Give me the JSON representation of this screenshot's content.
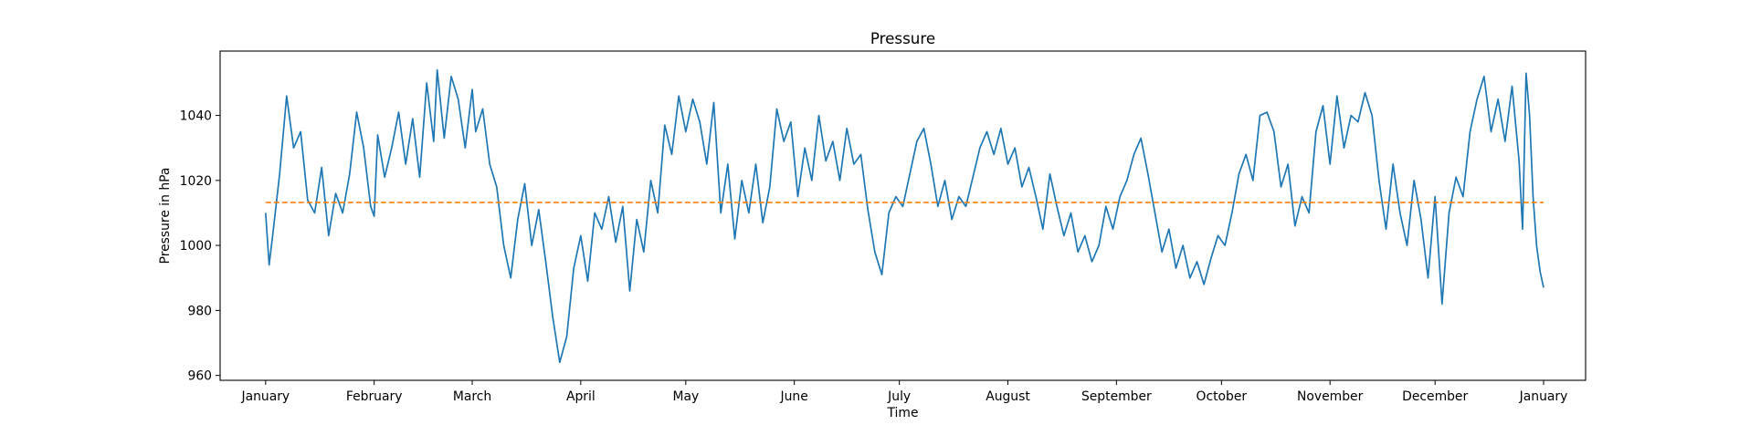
{
  "chart_data": {
    "type": "line",
    "title": "Pressure",
    "xlabel": "Time",
    "ylabel": "Pressure in hPa",
    "x_ticks": [
      "January",
      "February",
      "March",
      "April",
      "May",
      "June",
      "July",
      "August",
      "September",
      "October",
      "November",
      "December",
      "January"
    ],
    "xlim": [
      "2018-12-19",
      "2020-01-13"
    ],
    "ylim": [
      958.5,
      1059.8
    ],
    "y_ticks": [
      960,
      980,
      1000,
      1020,
      1040
    ],
    "grid": false,
    "legend": "none",
    "series": [
      {
        "color": "#1f77b4",
        "linestyle": "solid",
        "points": [
          [
            "2019-01-01",
            1010
          ],
          [
            "2019-01-02",
            994
          ],
          [
            "2019-01-03",
            1003
          ],
          [
            "2019-01-05",
            1022
          ],
          [
            "2019-01-07",
            1046
          ],
          [
            "2019-01-09",
            1030
          ],
          [
            "2019-01-11",
            1035
          ],
          [
            "2019-01-13",
            1014
          ],
          [
            "2019-01-15",
            1010
          ],
          [
            "2019-01-17",
            1024
          ],
          [
            "2019-01-19",
            1003
          ],
          [
            "2019-01-21",
            1016
          ],
          [
            "2019-01-23",
            1010
          ],
          [
            "2019-01-25",
            1022
          ],
          [
            "2019-01-27",
            1041
          ],
          [
            "2019-01-29",
            1030
          ],
          [
            "2019-01-31",
            1012
          ],
          [
            "2019-02-01",
            1009
          ],
          [
            "2019-02-02",
            1034
          ],
          [
            "2019-02-04",
            1021
          ],
          [
            "2019-02-06",
            1030
          ],
          [
            "2019-02-08",
            1041
          ],
          [
            "2019-02-10",
            1025
          ],
          [
            "2019-02-12",
            1039
          ],
          [
            "2019-02-14",
            1021
          ],
          [
            "2019-02-16",
            1050
          ],
          [
            "2019-02-18",
            1032
          ],
          [
            "2019-02-19",
            1054
          ],
          [
            "2019-02-21",
            1033
          ],
          [
            "2019-02-23",
            1052
          ],
          [
            "2019-02-25",
            1045
          ],
          [
            "2019-02-27",
            1030
          ],
          [
            "2019-03-01",
            1048
          ],
          [
            "2019-03-02",
            1035
          ],
          [
            "2019-03-04",
            1042
          ],
          [
            "2019-03-06",
            1025
          ],
          [
            "2019-03-08",
            1018
          ],
          [
            "2019-03-10",
            1000
          ],
          [
            "2019-03-12",
            990
          ],
          [
            "2019-03-14",
            1008
          ],
          [
            "2019-03-16",
            1019
          ],
          [
            "2019-03-18",
            1000
          ],
          [
            "2019-03-20",
            1011
          ],
          [
            "2019-03-22",
            995
          ],
          [
            "2019-03-24",
            978
          ],
          [
            "2019-03-26",
            964
          ],
          [
            "2019-03-28",
            972
          ],
          [
            "2019-03-30",
            993
          ],
          [
            "2019-04-01",
            1003
          ],
          [
            "2019-04-03",
            989
          ],
          [
            "2019-04-05",
            1010
          ],
          [
            "2019-04-07",
            1005
          ],
          [
            "2019-04-09",
            1015
          ],
          [
            "2019-04-11",
            1001
          ],
          [
            "2019-04-13",
            1012
          ],
          [
            "2019-04-15",
            986
          ],
          [
            "2019-04-17",
            1008
          ],
          [
            "2019-04-19",
            998
          ],
          [
            "2019-04-21",
            1020
          ],
          [
            "2019-04-23",
            1010
          ],
          [
            "2019-04-25",
            1037
          ],
          [
            "2019-04-27",
            1028
          ],
          [
            "2019-04-29",
            1046
          ],
          [
            "2019-05-01",
            1035
          ],
          [
            "2019-05-03",
            1045
          ],
          [
            "2019-05-05",
            1038
          ],
          [
            "2019-05-07",
            1025
          ],
          [
            "2019-05-09",
            1044
          ],
          [
            "2019-05-11",
            1010
          ],
          [
            "2019-05-13",
            1025
          ],
          [
            "2019-05-15",
            1002
          ],
          [
            "2019-05-17",
            1020
          ],
          [
            "2019-05-19",
            1010
          ],
          [
            "2019-05-21",
            1025
          ],
          [
            "2019-05-23",
            1007
          ],
          [
            "2019-05-25",
            1018
          ],
          [
            "2019-05-27",
            1042
          ],
          [
            "2019-05-29",
            1032
          ],
          [
            "2019-05-31",
            1038
          ],
          [
            "2019-06-02",
            1015
          ],
          [
            "2019-06-04",
            1030
          ],
          [
            "2019-06-06",
            1020
          ],
          [
            "2019-06-08",
            1040
          ],
          [
            "2019-06-10",
            1026
          ],
          [
            "2019-06-12",
            1032
          ],
          [
            "2019-06-14",
            1020
          ],
          [
            "2019-06-16",
            1036
          ],
          [
            "2019-06-18",
            1025
          ],
          [
            "2019-06-20",
            1028
          ],
          [
            "2019-06-22",
            1011
          ],
          [
            "2019-06-24",
            998
          ],
          [
            "2019-06-26",
            991
          ],
          [
            "2019-06-28",
            1010
          ],
          [
            "2019-06-30",
            1015
          ],
          [
            "2019-07-02",
            1012
          ],
          [
            "2019-07-04",
            1022
          ],
          [
            "2019-07-06",
            1032
          ],
          [
            "2019-07-08",
            1036
          ],
          [
            "2019-07-10",
            1025
          ],
          [
            "2019-07-12",
            1012
          ],
          [
            "2019-07-14",
            1020
          ],
          [
            "2019-07-16",
            1008
          ],
          [
            "2019-07-18",
            1015
          ],
          [
            "2019-07-20",
            1012
          ],
          [
            "2019-07-22",
            1021
          ],
          [
            "2019-07-24",
            1030
          ],
          [
            "2019-07-26",
            1035
          ],
          [
            "2019-07-28",
            1028
          ],
          [
            "2019-07-30",
            1036
          ],
          [
            "2019-08-01",
            1025
          ],
          [
            "2019-08-03",
            1030
          ],
          [
            "2019-08-05",
            1018
          ],
          [
            "2019-08-07",
            1024
          ],
          [
            "2019-08-09",
            1015
          ],
          [
            "2019-08-11",
            1005
          ],
          [
            "2019-08-13",
            1022
          ],
          [
            "2019-08-15",
            1012
          ],
          [
            "2019-08-17",
            1003
          ],
          [
            "2019-08-19",
            1010
          ],
          [
            "2019-08-21",
            998
          ],
          [
            "2019-08-23",
            1003
          ],
          [
            "2019-08-25",
            995
          ],
          [
            "2019-08-27",
            1000
          ],
          [
            "2019-08-29",
            1012
          ],
          [
            "2019-08-31",
            1005
          ],
          [
            "2019-09-02",
            1015
          ],
          [
            "2019-09-04",
            1020
          ],
          [
            "2019-09-06",
            1028
          ],
          [
            "2019-09-08",
            1033
          ],
          [
            "2019-09-10",
            1022
          ],
          [
            "2019-09-12",
            1010
          ],
          [
            "2019-09-14",
            998
          ],
          [
            "2019-09-16",
            1005
          ],
          [
            "2019-09-18",
            993
          ],
          [
            "2019-09-20",
            1000
          ],
          [
            "2019-09-22",
            990
          ],
          [
            "2019-09-24",
            995
          ],
          [
            "2019-09-26",
            988
          ],
          [
            "2019-09-28",
            996
          ],
          [
            "2019-09-30",
            1003
          ],
          [
            "2019-10-02",
            1000
          ],
          [
            "2019-10-04",
            1010
          ],
          [
            "2019-10-06",
            1022
          ],
          [
            "2019-10-08",
            1028
          ],
          [
            "2019-10-10",
            1020
          ],
          [
            "2019-10-12",
            1040
          ],
          [
            "2019-10-14",
            1041
          ],
          [
            "2019-10-16",
            1035
          ],
          [
            "2019-10-18",
            1018
          ],
          [
            "2019-10-20",
            1025
          ],
          [
            "2019-10-22",
            1006
          ],
          [
            "2019-10-24",
            1015
          ],
          [
            "2019-10-26",
            1010
          ],
          [
            "2019-10-28",
            1035
          ],
          [
            "2019-10-30",
            1043
          ],
          [
            "2019-11-01",
            1025
          ],
          [
            "2019-11-03",
            1046
          ],
          [
            "2019-11-05",
            1030
          ],
          [
            "2019-11-07",
            1040
          ],
          [
            "2019-11-09",
            1038
          ],
          [
            "2019-11-11",
            1047
          ],
          [
            "2019-11-13",
            1040
          ],
          [
            "2019-11-15",
            1020
          ],
          [
            "2019-11-17",
            1005
          ],
          [
            "2019-11-19",
            1025
          ],
          [
            "2019-11-21",
            1010
          ],
          [
            "2019-11-23",
            1000
          ],
          [
            "2019-11-25",
            1020
          ],
          [
            "2019-11-27",
            1008
          ],
          [
            "2019-11-29",
            990
          ],
          [
            "2019-12-01",
            1015
          ],
          [
            "2019-12-03",
            982
          ],
          [
            "2019-12-05",
            1010
          ],
          [
            "2019-12-07",
            1021
          ],
          [
            "2019-12-09",
            1015
          ],
          [
            "2019-12-11",
            1035
          ],
          [
            "2019-12-13",
            1045
          ],
          [
            "2019-12-15",
            1052
          ],
          [
            "2019-12-17",
            1035
          ],
          [
            "2019-12-19",
            1045
          ],
          [
            "2019-12-21",
            1032
          ],
          [
            "2019-12-23",
            1049
          ],
          [
            "2019-12-25",
            1026
          ],
          [
            "2019-12-26",
            1005
          ],
          [
            "2019-12-27",
            1053
          ],
          [
            "2019-12-28",
            1040
          ],
          [
            "2019-12-29",
            1015
          ],
          [
            "2019-12-30",
            1000
          ],
          [
            "2019-12-31",
            992
          ],
          [
            "2020-01-01",
            987
          ]
        ]
      },
      {
        "color": "#ff7f0e",
        "linestyle": "dashed",
        "points": [
          [
            "2019-01-01",
            1013.25
          ],
          [
            "2020-01-01",
            1013.25
          ]
        ]
      }
    ]
  }
}
